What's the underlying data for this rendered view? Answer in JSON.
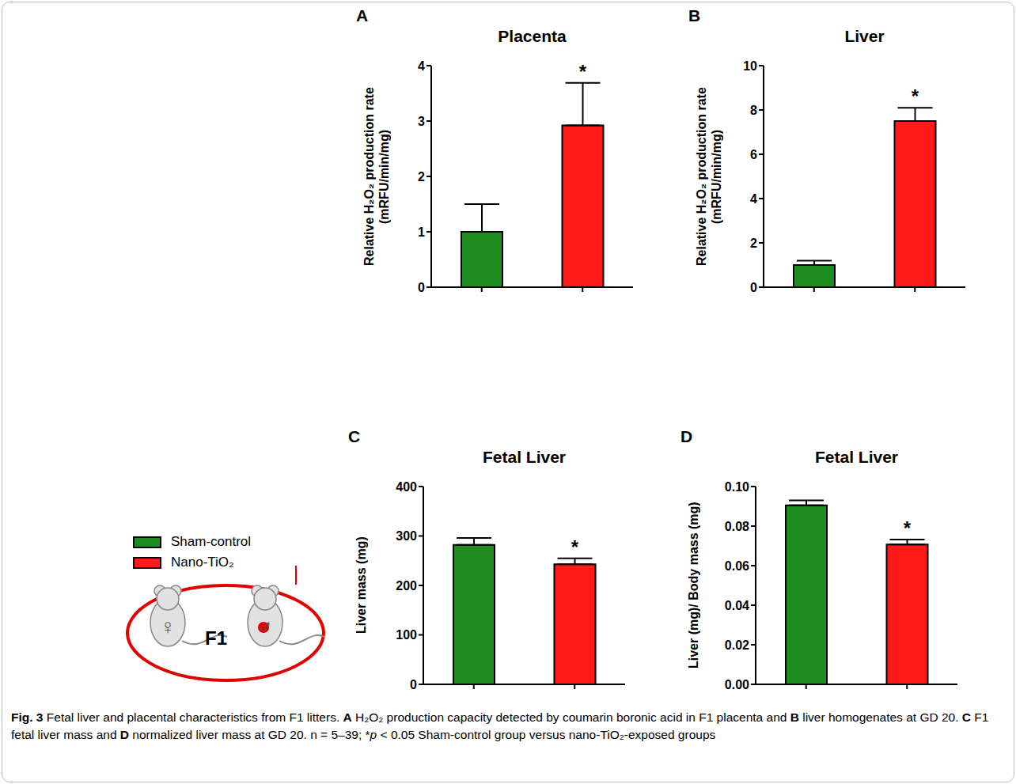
{
  "chart_data": [
    {
      "type": "bar",
      "panel": "A",
      "title": "Placenta",
      "y_label": "Relative H₂O₂ production rate (mRFU/min/mg)",
      "categories": [
        null,
        null
      ],
      "values": [
        1.0,
        2.92
      ],
      "errors": [
        0.5,
        0.77
      ],
      "significance": [
        null,
        "*"
      ],
      "colors": [
        "#1e8c1e",
        "#ff1a1a"
      ],
      "ylim": [
        0,
        4
      ],
      "yticks": [
        0,
        1,
        2,
        3,
        4
      ],
      "grid": false
    },
    {
      "type": "bar",
      "panel": "B",
      "title": "Liver",
      "y_label": "Relative H₂O₂ production rate (mRFU/min/mg)",
      "categories": [
        null,
        null
      ],
      "values": [
        1.0,
        7.5
      ],
      "errors": [
        0.2,
        0.6
      ],
      "significance": [
        null,
        "*"
      ],
      "colors": [
        "#1e8c1e",
        "#ff1a1a"
      ],
      "ylim": [
        0,
        10
      ],
      "yticks": [
        0,
        2,
        4,
        6,
        8,
        10
      ],
      "grid": false
    },
    {
      "type": "bar",
      "panel": "C",
      "title": "Fetal Liver",
      "y_label": "Liver mass (mg)",
      "categories": [
        null,
        null
      ],
      "values": [
        282,
        243
      ],
      "errors": [
        14,
        12
      ],
      "significance": [
        null,
        "*"
      ],
      "colors": [
        "#1e8c1e",
        "#ff1a1a"
      ],
      "ylim": [
        0,
        400
      ],
      "yticks": [
        0,
        100,
        200,
        300,
        400
      ],
      "grid": false
    },
    {
      "type": "bar",
      "panel": "D",
      "title": "Fetal Liver",
      "y_label": "Liver (mg)/ Body mass (mg)",
      "categories": [
        null,
        null
      ],
      "values": [
        0.0905,
        0.0707
      ],
      "errors": [
        0.0025,
        0.0025
      ],
      "significance": [
        null,
        "*"
      ],
      "colors": [
        "#1e8c1e",
        "#ff1a1a"
      ],
      "ylim": [
        0,
        0.1
      ],
      "yticks": [
        {
          "value": 0,
          "label": "0.00"
        },
        0.02,
        0.04,
        0.06,
        0.08,
        {
          "value": 0.1,
          "label": "0.10"
        }
      ],
      "grid": false
    }
  ],
  "legend_entries": [
    {
      "name": "Sham-control",
      "color": "#1e8c1e"
    },
    {
      "name": "Nano-TiO₂",
      "color": "#ff1a1a"
    }
  ],
  "illustration": {
    "label": "F1",
    "symbols": [
      "♀",
      "♂"
    ]
  },
  "caption": [
    {
      "text": "Fig. 3",
      "bold": true
    },
    {
      "text": " Fetal liver and placental characteristics from F1 litters. "
    },
    {
      "text": "A",
      "bold": true
    },
    {
      "text": " H₂O₂ production capacity detected by coumarin boronic acid in F1 placenta and "
    },
    {
      "text": "B",
      "bold": true
    },
    {
      "text": " liver homogenates at GD 20. "
    },
    {
      "text": "C",
      "bold": true
    },
    {
      "text": " F1 fetal liver mass and "
    },
    {
      "text": "D",
      "bold": true
    },
    {
      "text": " normalized liver mass at GD 20. n = 5–39; *"
    },
    {
      "text": "p",
      "italic": true
    },
    {
      "text": " < 0.05 Sham-control group versus nano-TiO₂-exposed groups"
    }
  ]
}
